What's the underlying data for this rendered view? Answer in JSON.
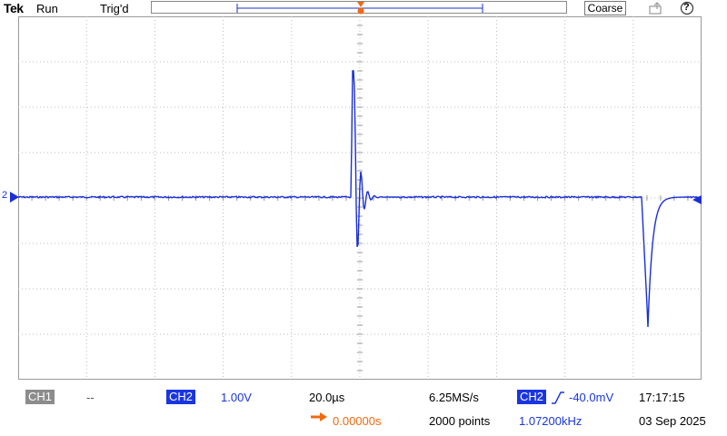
{
  "topbar": {
    "brand": "Tek",
    "state": "Run",
    "trigger_status": "Trig'd",
    "coarse_label": "Coarse",
    "help_label": "?"
  },
  "markers": {
    "trigger_letter": "T",
    "channel_marker": "2"
  },
  "readout": {
    "ch1": {
      "label": "CH1",
      "scale": "--"
    },
    "ch2": {
      "label": "CH2",
      "scale": "1.00V"
    },
    "timebase": "20.0µs",
    "sample_rate": "6.25MS/s",
    "record_length": "2000 points",
    "horizontal_position": "0.00000s",
    "trigger": {
      "source": "CH2",
      "level": "-40.0mV",
      "frequency": "1.07200kHz"
    },
    "time": "17:17:15",
    "date": "03 Sep 2025"
  },
  "colors": {
    "trace": "#1a2fd6",
    "ch2_badge": "#1a35e0",
    "ch1_badge": "#8c8c8c",
    "trigger": "#f06a10",
    "grid": "#bcbcbc"
  },
  "icons": [
    "external-marker-icon",
    "help-icon",
    "trigger-position-icon",
    "trigger-slope-rising-icon",
    "horizontal-position-arrow-icon",
    "channel-2-ground-marker-icon"
  ]
}
